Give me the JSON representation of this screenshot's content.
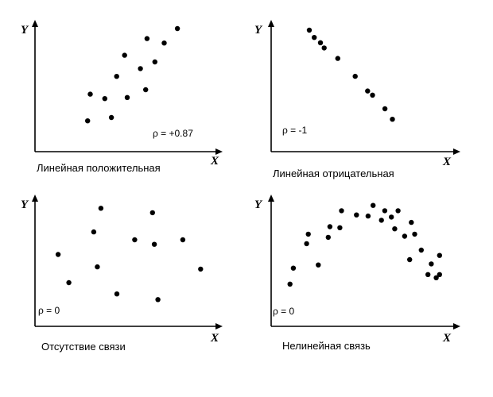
{
  "chart_data": [
    {
      "type": "scatter",
      "title": "Линейная положительная",
      "annotation": "ρ = +0.87",
      "xlabel": "X",
      "ylabel": "Y",
      "xlim": [
        0,
        10
      ],
      "ylim": [
        0,
        10
      ],
      "grid": false,
      "points": [
        {
          "x": 2.3,
          "y": 1.7
        },
        {
          "x": 2.5,
          "y": 4.1
        },
        {
          "x": 3.6,
          "y": 3.7
        },
        {
          "x": 4.1,
          "y": 2.0
        },
        {
          "x": 4.5,
          "y": 5.7
        },
        {
          "x": 5.1,
          "y": 7.6
        },
        {
          "x": 5.3,
          "y": 3.8
        },
        {
          "x": 6.3,
          "y": 6.4
        },
        {
          "x": 6.7,
          "y": 4.5
        },
        {
          "x": 6.8,
          "y": 9.1
        },
        {
          "x": 7.4,
          "y": 7.0
        },
        {
          "x": 8.1,
          "y": 8.7
        },
        {
          "x": 9.1,
          "y": 10.0
        }
      ]
    },
    {
      "type": "scatter",
      "title": "Линейная отрицательная",
      "annotation": "ρ = -1",
      "xlabel": "X",
      "ylabel": "Y",
      "xlim": [
        0,
        10
      ],
      "ylim": [
        0,
        10
      ],
      "grid": false,
      "points": [
        {
          "x": 1.6,
          "y": 10.0
        },
        {
          "x": 2.0,
          "y": 9.3
        },
        {
          "x": 2.5,
          "y": 8.8
        },
        {
          "x": 2.8,
          "y": 8.3
        },
        {
          "x": 3.9,
          "y": 7.3
        },
        {
          "x": 5.3,
          "y": 5.6
        },
        {
          "x": 6.3,
          "y": 4.2
        },
        {
          "x": 6.7,
          "y": 3.8
        },
        {
          "x": 7.7,
          "y": 2.5
        },
        {
          "x": 8.3,
          "y": 1.5
        }
      ]
    },
    {
      "type": "scatter",
      "title": "Отсутствие связи",
      "annotation": "ρ = 0",
      "xlabel": "X",
      "ylabel": "Y",
      "xlim": [
        0,
        10
      ],
      "ylim": [
        0,
        10
      ],
      "grid": false,
      "points": [
        {
          "x": 1.3,
          "y": 5.6
        },
        {
          "x": 1.9,
          "y": 3.1
        },
        {
          "x": 3.3,
          "y": 7.6
        },
        {
          "x": 3.5,
          "y": 4.5
        },
        {
          "x": 3.7,
          "y": 9.7
        },
        {
          "x": 4.6,
          "y": 2.1
        },
        {
          "x": 5.6,
          "y": 6.9
        },
        {
          "x": 6.6,
          "y": 9.3
        },
        {
          "x": 6.7,
          "y": 6.5
        },
        {
          "x": 6.9,
          "y": 1.6
        },
        {
          "x": 8.3,
          "y": 6.9
        },
        {
          "x": 9.3,
          "y": 4.3
        }
      ]
    },
    {
      "type": "scatter",
      "title": "Нелинейная связь",
      "annotation": "ρ = 0",
      "xlabel": "X",
      "ylabel": "Y",
      "xlim": [
        0,
        10
      ],
      "ylim": [
        0,
        10
      ],
      "grid": false,
      "points": [
        {
          "x": 0.8,
          "y": 2.4
        },
        {
          "x": 1.0,
          "y": 3.9
        },
        {
          "x": 1.8,
          "y": 6.2
        },
        {
          "x": 1.9,
          "y": 7.1
        },
        {
          "x": 2.5,
          "y": 4.2
        },
        {
          "x": 3.1,
          "y": 6.8
        },
        {
          "x": 3.2,
          "y": 7.8
        },
        {
          "x": 3.8,
          "y": 7.7
        },
        {
          "x": 3.9,
          "y": 9.3
        },
        {
          "x": 4.8,
          "y": 8.9
        },
        {
          "x": 5.5,
          "y": 8.8
        },
        {
          "x": 5.8,
          "y": 9.8
        },
        {
          "x": 6.3,
          "y": 8.4
        },
        {
          "x": 6.5,
          "y": 9.3
        },
        {
          "x": 6.9,
          "y": 8.7
        },
        {
          "x": 7.1,
          "y": 7.6
        },
        {
          "x": 7.3,
          "y": 9.3
        },
        {
          "x": 7.7,
          "y": 6.9
        },
        {
          "x": 8.0,
          "y": 4.7
        },
        {
          "x": 8.1,
          "y": 8.2
        },
        {
          "x": 8.3,
          "y": 7.1
        },
        {
          "x": 8.7,
          "y": 5.6
        },
        {
          "x": 9.1,
          "y": 3.3
        },
        {
          "x": 9.3,
          "y": 4.3
        },
        {
          "x": 9.6,
          "y": 3.0
        },
        {
          "x": 9.8,
          "y": 5.1
        },
        {
          "x": 9.8,
          "y": 3.3
        }
      ]
    }
  ]
}
